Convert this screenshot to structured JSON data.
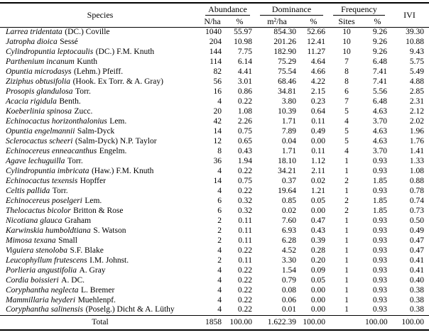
{
  "table": {
    "headers": {
      "species": "Species",
      "abundance": "Abundance",
      "dominance": "Dominance",
      "frequency": "Frequency",
      "ivi": "IVI"
    },
    "sub_headers": {
      "n_ha": "N/ha",
      "abundance_pct": "%",
      "m2_ha": "m²/ha",
      "dominance_pct": "%",
      "sites": "Sites",
      "frequency_pct": "%"
    },
    "rows": [
      {
        "species": "Larrea tridentata",
        "authority": "(DC.) Coville",
        "n_ha": "1040",
        "abundance_pct": "55.97",
        "m2_ha": "854.30",
        "dominance_pct": "52.66",
        "sites": "10",
        "frequency_pct": "9.26",
        "ivi": "39.30"
      },
      {
        "species": "Jatropha dioica",
        "authority": "Sessé",
        "n_ha": "204",
        "abundance_pct": "10.98",
        "m2_ha": "201.26",
        "dominance_pct": "12.41",
        "sites": "10",
        "frequency_pct": "9.26",
        "ivi": "10.88"
      },
      {
        "species": "Cylindropuntia leptocaulis",
        "authority": "(DC.) F.M. Knuth",
        "n_ha": "144",
        "abundance_pct": "7.75",
        "m2_ha": "182.90",
        "dominance_pct": "11.27",
        "sites": "10",
        "frequency_pct": "9.26",
        "ivi": "9.43"
      },
      {
        "species": "Parthenium incanum",
        "authority": "Kunth",
        "n_ha": "114",
        "abundance_pct": "6.14",
        "m2_ha": "75.29",
        "dominance_pct": "4.64",
        "sites": "7",
        "frequency_pct": "6.48",
        "ivi": "5.75"
      },
      {
        "species": "Opuntia microdasys",
        "authority": "(Lehm.) Pfeiff.",
        "n_ha": "82",
        "abundance_pct": "4.41",
        "m2_ha": "75.54",
        "dominance_pct": "4.66",
        "sites": "8",
        "frequency_pct": "7.41",
        "ivi": "5.49"
      },
      {
        "species": "Ziziphus obtusifolia",
        "authority": "(Hook. Ex Torr. & A. Gray)",
        "n_ha": "56",
        "abundance_pct": "3.01",
        "m2_ha": "68.46",
        "dominance_pct": "4.22",
        "sites": "8",
        "frequency_pct": "7.41",
        "ivi": "4.88"
      },
      {
        "species": "Prosopis glandulosa",
        "authority": "Torr.",
        "n_ha": "16",
        "abundance_pct": "0.86",
        "m2_ha": "34.81",
        "dominance_pct": "2.15",
        "sites": "6",
        "frequency_pct": "5.56",
        "ivi": "2.85"
      },
      {
        "species": "Acacia rigidula",
        "authority": "Benth.",
        "n_ha": "4",
        "abundance_pct": "0.22",
        "m2_ha": "3.80",
        "dominance_pct": "0.23",
        "sites": "7",
        "frequency_pct": "6.48",
        "ivi": "2.31"
      },
      {
        "species": "Koeberlinia spinosa",
        "authority": "Zucc.",
        "n_ha": "20",
        "abundance_pct": "1.08",
        "m2_ha": "10.39",
        "dominance_pct": "0.64",
        "sites": "5",
        "frequency_pct": "4.63",
        "ivi": "2.12"
      },
      {
        "species": "Echinocactus horizonthalonius",
        "authority": "Lem.",
        "n_ha": "42",
        "abundance_pct": "2.26",
        "m2_ha": "1.71",
        "dominance_pct": "0.11",
        "sites": "4",
        "frequency_pct": "3.70",
        "ivi": "2.02"
      },
      {
        "species": "Opuntia engelmannii",
        "authority": "Salm-Dyck",
        "n_ha": "14",
        "abundance_pct": "0.75",
        "m2_ha": "7.89",
        "dominance_pct": "0.49",
        "sites": "5",
        "frequency_pct": "4.63",
        "ivi": "1.96"
      },
      {
        "species": "Sclerocactus scheeri",
        "authority": "(Salm-Dyck) N.P. Taylor",
        "n_ha": "12",
        "abundance_pct": "0.65",
        "m2_ha": "0.04",
        "dominance_pct": "0.00",
        "sites": "5",
        "frequency_pct": "4.63",
        "ivi": "1.76"
      },
      {
        "species": "Echinocereus enneacanthus",
        "authority": "Engelm.",
        "n_ha": "8",
        "abundance_pct": "0.43",
        "m2_ha": "1.71",
        "dominance_pct": "0.11",
        "sites": "4",
        "frequency_pct": "3.70",
        "ivi": "1.41"
      },
      {
        "species": "Agave lechuguilla",
        "authority": "Torr.",
        "n_ha": "36",
        "abundance_pct": "1.94",
        "m2_ha": "18.10",
        "dominance_pct": "1.12",
        "sites": "1",
        "frequency_pct": "0.93",
        "ivi": "1.33"
      },
      {
        "species": "Cylindropuntia imbricata",
        "authority": "(Haw.) F.M. Knuth",
        "n_ha": "4",
        "abundance_pct": "0.22",
        "m2_ha": "34.21",
        "dominance_pct": "2.11",
        "sites": "1",
        "frequency_pct": "0.93",
        "ivi": "1.08"
      },
      {
        "species": "Echinocactus texensis",
        "authority": "Hopffer",
        "n_ha": "14",
        "abundance_pct": "0.75",
        "m2_ha": "0.37",
        "dominance_pct": "0.02",
        "sites": "2",
        "frequency_pct": "1.85",
        "ivi": "0.88"
      },
      {
        "species": "Celtis pallida",
        "authority": "Torr.",
        "n_ha": "4",
        "abundance_pct": "0.22",
        "m2_ha": "19.64",
        "dominance_pct": "1.21",
        "sites": "1",
        "frequency_pct": "0.93",
        "ivi": "0.78"
      },
      {
        "species": "Echinocereus poselgeri",
        "authority": "Lem.",
        "n_ha": "6",
        "abundance_pct": "0.32",
        "m2_ha": "0.85",
        "dominance_pct": "0.05",
        "sites": "2",
        "frequency_pct": "1.85",
        "ivi": "0.74"
      },
      {
        "species": "Thelocactus bicolor",
        "authority": "Britton & Rose",
        "n_ha": "6",
        "abundance_pct": "0.32",
        "m2_ha": "0.02",
        "dominance_pct": "0.00",
        "sites": "2",
        "frequency_pct": "1.85",
        "ivi": "0.73"
      },
      {
        "species": "Nicotiana glauca",
        "authority": "Graham",
        "n_ha": "2",
        "abundance_pct": "0.11",
        "m2_ha": "7.60",
        "dominance_pct": "0.47",
        "sites": "1",
        "frequency_pct": "0.93",
        "ivi": "0.50"
      },
      {
        "species": "Karwinskia humboldtiana",
        "authority": "S. Watson",
        "n_ha": "2",
        "abundance_pct": "0.11",
        "m2_ha": "6.93",
        "dominance_pct": "0.43",
        "sites": "1",
        "frequency_pct": "0.93",
        "ivi": "0.49"
      },
      {
        "species": "Mimosa texana",
        "authority": "Small",
        "n_ha": "2",
        "abundance_pct": "0.11",
        "m2_ha": "6.28",
        "dominance_pct": "0.39",
        "sites": "1",
        "frequency_pct": "0.93",
        "ivi": "0.47"
      },
      {
        "species": "Viguiera stenoloba",
        "authority": "S.F. Blake",
        "n_ha": "4",
        "abundance_pct": "0.22",
        "m2_ha": "4.52",
        "dominance_pct": "0.28",
        "sites": "1",
        "frequency_pct": "0.93",
        "ivi": "0.47"
      },
      {
        "species": "Leucophyllum frutescens",
        "authority": "I.M. Johnst.",
        "n_ha": "2",
        "abundance_pct": "0.11",
        "m2_ha": "3.30",
        "dominance_pct": "0.20",
        "sites": "1",
        "frequency_pct": "0.93",
        "ivi": "0.41"
      },
      {
        "species": "Porlieria angustifolia",
        "authority": "A. Gray",
        "n_ha": "4",
        "abundance_pct": "0.22",
        "m2_ha": "1.54",
        "dominance_pct": "0.09",
        "sites": "1",
        "frequency_pct": "0.93",
        "ivi": "0.41"
      },
      {
        "species": "Cordia boissieri",
        "authority": "A. DC.",
        "n_ha": "4",
        "abundance_pct": "0.22",
        "m2_ha": "0.79",
        "dominance_pct": "0.05",
        "sites": "1",
        "frequency_pct": "0.93",
        "ivi": "0.40"
      },
      {
        "species": "Coryphantha neglecta",
        "authority": "L. Bremer",
        "n_ha": "4",
        "abundance_pct": "0.22",
        "m2_ha": "0.08",
        "dominance_pct": "0.00",
        "sites": "1",
        "frequency_pct": "0.93",
        "ivi": "0.38"
      },
      {
        "species": "Mammillaria heyderi",
        "authority": "Muehlenpf.",
        "n_ha": "4",
        "abundance_pct": "0.22",
        "m2_ha": "0.06",
        "dominance_pct": "0.00",
        "sites": "1",
        "frequency_pct": "0.93",
        "ivi": "0.38"
      },
      {
        "species": "Coryphantha salinensis",
        "authority": "(Poselg.) Dicht & A. Lüthy",
        "n_ha": "4",
        "abundance_pct": "0.22",
        "m2_ha": "0.01",
        "dominance_pct": "0.00",
        "sites": "1",
        "frequency_pct": "0.93",
        "ivi": "0.38"
      }
    ],
    "total": {
      "label": "Total",
      "n_ha": "1858",
      "abundance_pct": "100.00",
      "m2_ha": "1.622.39",
      "dominance_pct": "100.00",
      "sites": "",
      "frequency_pct": "100.00",
      "ivi": "100.00"
    }
  }
}
